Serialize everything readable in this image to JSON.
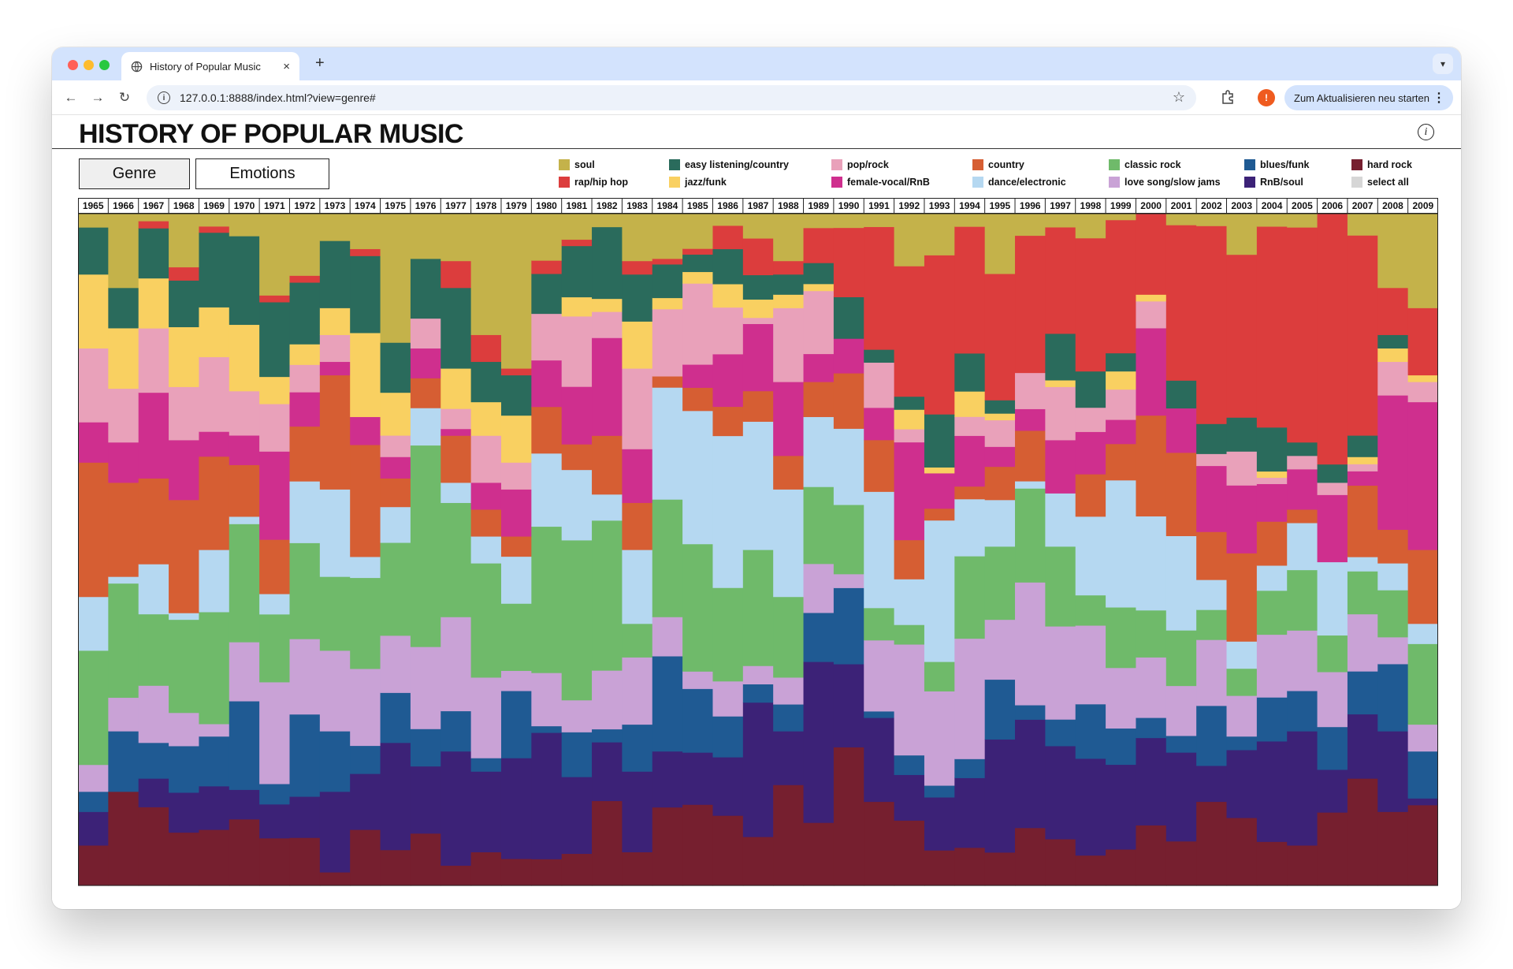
{
  "browser": {
    "tab_title": "History of Popular Music",
    "tab_close": "×",
    "new_tab": "+",
    "url": "127.0.0.1:8888/index.html?view=genre#",
    "update_button": "Zum Aktualisieren neu starten",
    "profile_initial": "!",
    "icons": [
      "back-icon",
      "forward-icon",
      "reload-icon",
      "info-icon",
      "star-icon",
      "extensions-icon",
      "menu-icon"
    ]
  },
  "page": {
    "title": "HISTORY OF POPULAR MUSIC",
    "info_symbol": "i",
    "views": [
      {
        "label": "Genre",
        "active": true
      },
      {
        "label": "Emotions",
        "active": false
      }
    ]
  },
  "legend": [
    {
      "label": "soul",
      "color": "#c4b24a"
    },
    {
      "label": "rap/hip hop",
      "color": "#dc3d3d"
    },
    {
      "label": "easy listening/country",
      "color": "#2a6b5c"
    },
    {
      "label": "jazz/funk",
      "color": "#f9d061"
    },
    {
      "label": "pop/rock",
      "color": "#e9a1ba"
    },
    {
      "label": "female-vocal/RnB",
      "color": "#cf2f8e"
    },
    {
      "label": "country",
      "color": "#d65e33"
    },
    {
      "label": "dance/electronic",
      "color": "#b5d8f1"
    },
    {
      "label": "classic rock",
      "color": "#6fba6a"
    },
    {
      "label": "love song/slow jams",
      "color": "#c9a2d6"
    },
    {
      "label": "blues/funk",
      "color": "#1f5a93"
    },
    {
      "label": "RnB/soul",
      "color": "#3c2277"
    },
    {
      "label": "hard rock",
      "color": "#761f2f"
    },
    {
      "label": "select all",
      "color": "#d6d6d6"
    }
  ],
  "chart_data": {
    "type": "area",
    "stacking": "normalized",
    "x": [
      1965,
      1966,
      1967,
      1968,
      1969,
      1970,
      1971,
      1972,
      1973,
      1974,
      1975,
      1976,
      1977,
      1978,
      1979,
      1980,
      1981,
      1982,
      1983,
      1984,
      1985,
      1986,
      1987,
      1988,
      1989,
      1990,
      1991,
      1992,
      1993,
      1994,
      1995,
      1996,
      1997,
      1998,
      1999,
      2000,
      2001,
      2002,
      2003,
      2004,
      2005,
      2006,
      2007,
      2008,
      2009
    ],
    "series": [
      {
        "name": "hard rock",
        "color": "#761f2f",
        "values": [
          6,
          14,
          11,
          8,
          9,
          9,
          7,
          7,
          2,
          8,
          5,
          7,
          3,
          5,
          4,
          4,
          5,
          13,
          5,
          14,
          14,
          12,
          8,
          15,
          9,
          20,
          13,
          10,
          6,
          6,
          5,
          8,
          7,
          5,
          6,
          9,
          8,
          14,
          10,
          7,
          6,
          12,
          15,
          11,
          12
        ]
      },
      {
        "name": "RnB/soul",
        "color": "#3c2277",
        "values": [
          5,
          0,
          4,
          6,
          7,
          4,
          5,
          6,
          12,
          8,
          15,
          9,
          17,
          12,
          15,
          19,
          12,
          9,
          12,
          10,
          9,
          10,
          22,
          8,
          23,
          12,
          13,
          7,
          9,
          11,
          17,
          15,
          14,
          16,
          14,
          13,
          16,
          6,
          10,
          16,
          17,
          7,
          9,
          12,
          1
        ]
      },
      {
        "name": "blues/funk",
        "color": "#1f5a93",
        "values": [
          3,
          9,
          5,
          7,
          8,
          12,
          3,
          12,
          9,
          4,
          7,
          5,
          6,
          2,
          10,
          1,
          7,
          2,
          7,
          17,
          11,
          7,
          3,
          4,
          7,
          11,
          1,
          3,
          2,
          3,
          9,
          2,
          4,
          9,
          6,
          3,
          3,
          10,
          2,
          7,
          6,
          7,
          6,
          10,
          7
        ]
      },
      {
        "name": "love song/slow jams",
        "color": "#c9a2d6",
        "values": [
          4,
          5,
          8,
          5,
          2,
          8,
          15,
          11,
          12,
          11,
          8,
          11,
          14,
          12,
          3,
          8,
          5,
          9,
          10,
          7,
          3,
          6,
          3,
          4,
          7,
          2,
          11,
          17,
          16,
          19,
          9,
          17,
          14,
          13,
          10,
          9,
          9,
          11,
          6,
          10,
          9,
          9,
          8,
          4,
          4
        ]
      },
      {
        "name": "classic rock",
        "color": "#6fba6a",
        "values": [
          17,
          17,
          10,
          14,
          18,
          16,
          10,
          14,
          11,
          13,
          13,
          27,
          17,
          17,
          10,
          22,
          25,
          23,
          5,
          21,
          22,
          16,
          19,
          12,
          11,
          10,
          5,
          3,
          5,
          13,
          11,
          13,
          12,
          5,
          10,
          7,
          10,
          5,
          4,
          7,
          9,
          6,
          6,
          7,
          12
        ]
      },
      {
        "name": "dance/electronic",
        "color": "#b5d8f1",
        "values": [
          8,
          1,
          7,
          1,
          10,
          1,
          3,
          9,
          13,
          3,
          5,
          5,
          3,
          4,
          7,
          11,
          11,
          4,
          11,
          20,
          23,
          26,
          21,
          16,
          10,
          11,
          18,
          7,
          24,
          9,
          7,
          1,
          8,
          13,
          21,
          14,
          17,
          5,
          4,
          4,
          7,
          12,
          2,
          4,
          3
        ]
      },
      {
        "name": "country",
        "color": "#d65e33",
        "values": [
          20,
          14,
          12,
          17,
          15,
          7,
          8,
          8,
          17,
          16,
          4,
          4,
          7,
          4,
          3,
          7,
          4,
          9,
          7,
          2,
          4,
          5,
          5,
          5,
          5,
          8,
          8,
          6,
          2,
          2,
          5,
          7,
          0,
          7,
          6,
          15,
          15,
          8,
          13,
          7,
          2,
          0,
          10,
          5,
          11
        ]
      },
      {
        "name": "female-vocal/RnB",
        "color": "#cf2f8e",
        "values": [
          6,
          6,
          12,
          9,
          4,
          4,
          13,
          5,
          2,
          4,
          3,
          4,
          1,
          4,
          7,
          7,
          9,
          15,
          8,
          0,
          4,
          9,
          11,
          11,
          4,
          5,
          5,
          15,
          6,
          8,
          3,
          3,
          8,
          7,
          4,
          13,
          8,
          11,
          10,
          6,
          6,
          11,
          2,
          20,
          22
        ]
      },
      {
        "name": "pop/rock",
        "color": "#e9a1ba",
        "values": [
          11,
          8,
          9,
          8,
          12,
          6,
          7,
          4,
          4,
          0,
          3,
          4,
          3,
          7,
          4,
          7,
          11,
          4,
          12,
          12,
          14,
          8,
          1,
          11,
          9,
          0,
          7,
          2,
          0,
          3,
          4,
          5,
          8,
          4,
          5,
          4,
          0,
          2,
          5,
          1,
          2,
          2,
          1,
          5,
          3
        ]
      },
      {
        "name": "jazz/funk",
        "color": "#f9d061",
        "values": [
          11,
          9,
          7,
          9,
          8,
          9,
          4,
          3,
          4,
          12,
          6,
          0,
          6,
          5,
          7,
          0,
          3,
          2,
          7,
          2,
          2,
          4,
          3,
          2,
          1,
          0,
          0,
          3,
          1,
          4,
          1,
          0,
          1,
          0,
          3,
          1,
          0,
          0,
          0,
          1,
          0,
          0,
          1,
          2,
          1
        ]
      },
      {
        "name": "easy listening/country",
        "color": "#2a6b5c",
        "values": [
          7,
          6,
          7,
          7,
          12,
          12,
          11,
          9,
          10,
          11,
          7,
          8,
          12,
          6,
          6,
          6,
          8,
          11,
          7,
          6,
          3,
          6,
          4,
          3,
          3,
          6,
          2,
          2,
          9,
          6,
          2,
          0,
          7,
          6,
          3,
          0,
          5,
          5,
          5,
          7,
          2,
          3,
          3,
          2,
          0
        ]
      },
      {
        "name": "rap/hip hop",
        "color": "#dc3d3d",
        "values": [
          0,
          0,
          1,
          2,
          1,
          0,
          1,
          1,
          0,
          1,
          0,
          0,
          4,
          4,
          1,
          2,
          1,
          0,
          2,
          1,
          1,
          4,
          6,
          2,
          5,
          10,
          19,
          20,
          27,
          20,
          19,
          19,
          16,
          22,
          22,
          12,
          28,
          33,
          24,
          32,
          32,
          41,
          28,
          7,
          10
        ]
      },
      {
        "name": "soul",
        "color": "#c4b24a",
        "values": [
          2,
          11,
          1,
          8,
          2,
          3,
          12,
          9,
          4,
          5,
          18,
          6,
          7,
          18,
          23,
          7,
          4,
          2,
          7,
          8,
          6,
          2,
          4,
          7,
          2,
          2,
          2,
          8,
          7,
          2,
          9,
          3,
          2,
          4,
          1,
          0,
          2,
          2,
          6,
          2,
          2,
          0,
          3,
          11,
          14
        ]
      }
    ],
    "title": "",
    "xlabel": "",
    "ylabel": "",
    "grid": false,
    "legend": "top-right",
    "ylim": [
      0,
      100
    ]
  }
}
